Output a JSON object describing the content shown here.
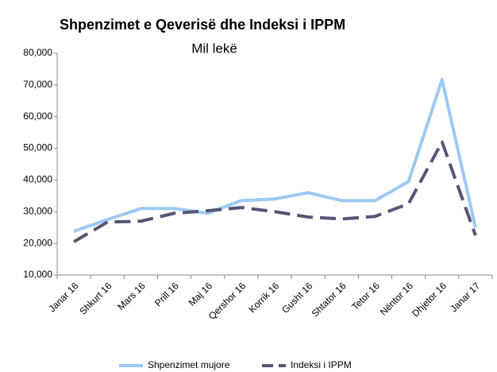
{
  "chart_data": {
    "type": "line",
    "title": "Shpenzimet e Qeverisë dhe Indeksi i IPPM",
    "subtitle": "Mil lekë",
    "categories": [
      "Janar 16",
      "Shkurt 16",
      "Mars 16",
      "Prill 16",
      "Maj 16",
      "Qershor 16",
      "Korrik 16",
      "Gusht 16",
      "Shtator 16",
      "Tetor 16",
      "Nëntor 16",
      "Dhjetor 16",
      "Janar 17"
    ],
    "series": [
      {
        "name": "Shpenzimet mujore",
        "color": "#9dc9f2",
        "dashed": false,
        "values": [
          23800,
          27500,
          31000,
          31000,
          29500,
          33500,
          34000,
          36000,
          33500,
          33500,
          39500,
          71700,
          25000
        ]
      },
      {
        "name": "Indeksi i IPPM",
        "color": "#555577",
        "dashed": true,
        "values": [
          20500,
          26700,
          27000,
          29500,
          30300,
          31300,
          30000,
          28300,
          27700,
          28500,
          32500,
          52000,
          22500
        ]
      }
    ],
    "ylim": [
      10000,
      80000
    ],
    "yticks": [
      {
        "value": 10000,
        "label": "10,000"
      },
      {
        "value": 20000,
        "label": "20,000"
      },
      {
        "value": 30000,
        "label": "30,000"
      },
      {
        "value": 40000,
        "label": "40,000"
      },
      {
        "value": 50000,
        "label": "50,000"
      },
      {
        "value": 60000,
        "label": "60,000"
      },
      {
        "value": 70000,
        "label": "70,000"
      },
      {
        "value": 80000,
        "label": "80,000"
      }
    ],
    "grid": false,
    "legend": "bottom"
  }
}
